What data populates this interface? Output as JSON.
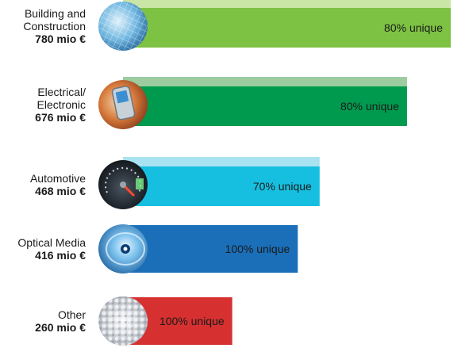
{
  "chart_data": {
    "type": "bar",
    "orientation": "horizontal",
    "title": "",
    "xlabel": "",
    "ylabel": "",
    "xlim": [
      0,
      780
    ],
    "categories": [
      {
        "name_lines": [
          "Building and",
          "Construction"
        ],
        "amount_label": "780 mio €",
        "value": 780,
        "unique_label": "80% unique",
        "unique_pct": 80,
        "color": "#7dc242",
        "light_color": "#c9e6a7",
        "icon": "building-glass-photo-icon"
      },
      {
        "name_lines": [
          "Electrical/",
          "Electronic"
        ],
        "amount_label": "676 mio €",
        "value": 676,
        "unique_label": "80% unique",
        "unique_pct": 80,
        "color": "#009a4e",
        "light_color": "#9ccc9f",
        "icon": "mobile-phone-photo-icon"
      },
      {
        "name_lines": [
          "Automotive"
        ],
        "amount_label": "468 mio €",
        "value": 468,
        "unique_label": "70% unique",
        "unique_pct": 70,
        "color": "#16bfe0",
        "light_color": "#a9e2f0",
        "icon": "speedometer-photo-icon"
      },
      {
        "name_lines": [
          "Optical Media"
        ],
        "amount_label": "416 mio €",
        "value": 416,
        "unique_label": "100% unique",
        "unique_pct": 100,
        "color": "#1a6fb8",
        "light_color": "#1a6fb8",
        "icon": "cd-disc-photo-icon"
      },
      {
        "name_lines": [
          "Other"
        ],
        "amount_label": "260 mio €",
        "value": 260,
        "unique_label": "100% unique",
        "unique_pct": 100,
        "color": "#d63030",
        "light_color": "#d63030",
        "icon": "plastic-granules-photo-icon"
      }
    ]
  }
}
